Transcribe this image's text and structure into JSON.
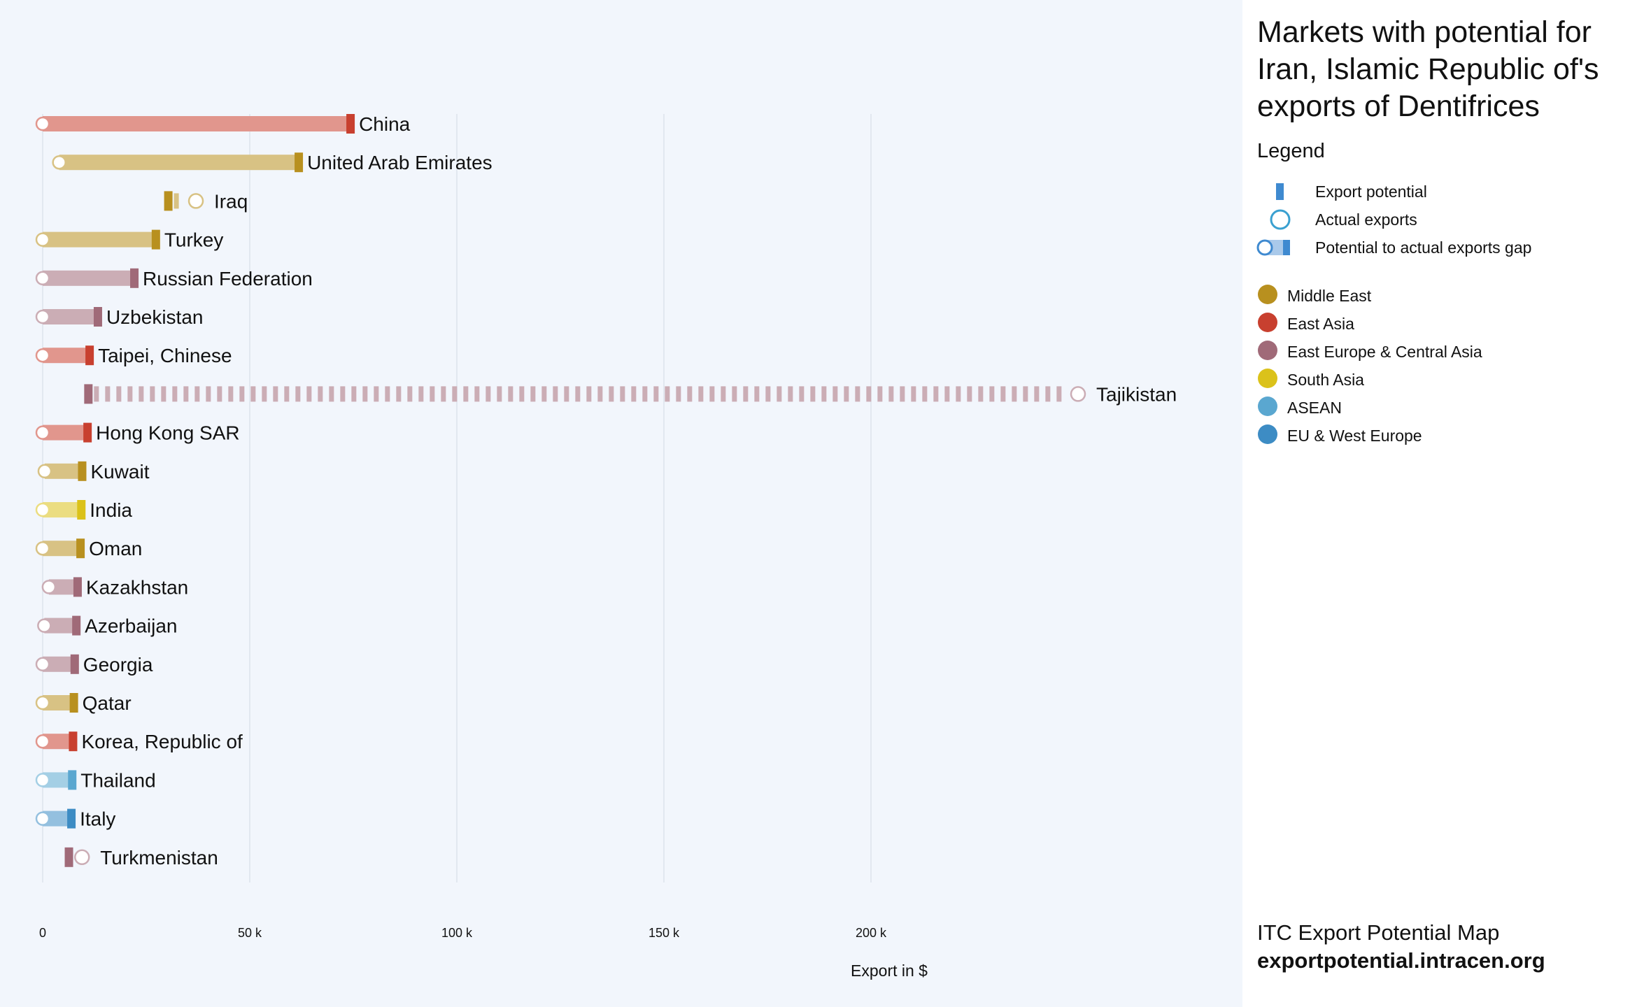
{
  "colors": {
    "Middle East": "#b8901f",
    "East Asia": "#c8402f",
    "East Europe & Central Asia": "#a06a78",
    "South Asia": "#dbc21a",
    "ASEAN": "#5aa7d0",
    "EU & West Europe": "#3d8cc4",
    "legend_accent": "#3f8ad0"
  },
  "panel": {
    "title": "Markets with potential for Iran, Islamic Republic of's exports of Dentifrices",
    "legend_heading": "Legend",
    "legend_items": [
      {
        "label": "Export potential",
        "icon": "potential-bar-icon"
      },
      {
        "label": "Actual exports",
        "icon": "actual-circle-icon"
      },
      {
        "label": "Potential to actual exports gap",
        "icon": "gap-icon"
      }
    ],
    "regions": [
      {
        "label": "Middle East",
        "icon": "region-dot-icon"
      },
      {
        "label": "East Asia",
        "icon": "region-dot-icon"
      },
      {
        "label": "East Europe & Central Asia",
        "icon": "region-dot-icon"
      },
      {
        "label": "South Asia",
        "icon": "region-dot-icon"
      },
      {
        "label": "ASEAN",
        "icon": "region-dot-icon"
      },
      {
        "label": "EU & West Europe",
        "icon": "region-dot-icon"
      }
    ],
    "footer_line1": "ITC Export Potential Map",
    "footer_line2": "exportpotential.intracen.org"
  },
  "chart_data": {
    "type": "dumbbell",
    "xlabel": "Export in $",
    "xlim": [
      0,
      290000
    ],
    "xticks": [
      0,
      50000,
      100000,
      150000,
      200000
    ],
    "xtick_labels": [
      "0",
      "50 k",
      "100 k",
      "150 k",
      "200 k"
    ],
    "grid": true,
    "legend_position": "right panel",
    "series": [
      {
        "name": "Export potential"
      },
      {
        "name": "Actual exports"
      }
    ],
    "rows": [
      {
        "country": "China",
        "region": "East Asia",
        "potential": 74000,
        "actual": 0
      },
      {
        "country": "United Arab Emirates",
        "region": "Middle East",
        "potential": 61500,
        "actual": 4000
      },
      {
        "country": "Iraq",
        "region": "Middle East",
        "potential": 30000,
        "actual": 37000
      },
      {
        "country": "Turkey",
        "region": "Middle East",
        "potential": 27000,
        "actual": 0
      },
      {
        "country": "Russian Federation",
        "region": "East Europe & Central Asia",
        "potential": 21800,
        "actual": 0
      },
      {
        "country": "Uzbekistan",
        "region": "East Europe & Central Asia",
        "potential": 13000,
        "actual": 0
      },
      {
        "country": "Taipei, Chinese",
        "region": "East Asia",
        "potential": 11000,
        "actual": 0
      },
      {
        "country": "Tajikistan",
        "region": "East Europe & Central Asia",
        "potential": 10700,
        "actual": 250000
      },
      {
        "country": "Hong Kong SAR",
        "region": "East Asia",
        "potential": 10500,
        "actual": 0
      },
      {
        "country": "Kuwait",
        "region": "Middle East",
        "potential": 9200,
        "actual": 500
      },
      {
        "country": "India",
        "region": "South Asia",
        "potential": 9000,
        "actual": 0
      },
      {
        "country": "Oman",
        "region": "Middle East",
        "potential": 8800,
        "actual": 0
      },
      {
        "country": "Kazakhstan",
        "region": "East Europe & Central Asia",
        "potential": 8100,
        "actual": 1500
      },
      {
        "country": "Azerbaijan",
        "region": "East Europe & Central Asia",
        "potential": 7800,
        "actual": 400
      },
      {
        "country": "Georgia",
        "region": "East Europe & Central Asia",
        "potential": 7400,
        "actual": 0
      },
      {
        "country": "Qatar",
        "region": "Middle East",
        "potential": 7200,
        "actual": 0
      },
      {
        "country": "Korea, Republic of",
        "region": "East Asia",
        "potential": 7000,
        "actual": 0
      },
      {
        "country": "Thailand",
        "region": "ASEAN",
        "potential": 6800,
        "actual": 0
      },
      {
        "country": "Italy",
        "region": "EU & West Europe",
        "potential": 6600,
        "actual": 0
      },
      {
        "country": "Turkmenistan",
        "region": "East Europe & Central Asia",
        "potential": 6000,
        "actual": 9500
      }
    ]
  }
}
